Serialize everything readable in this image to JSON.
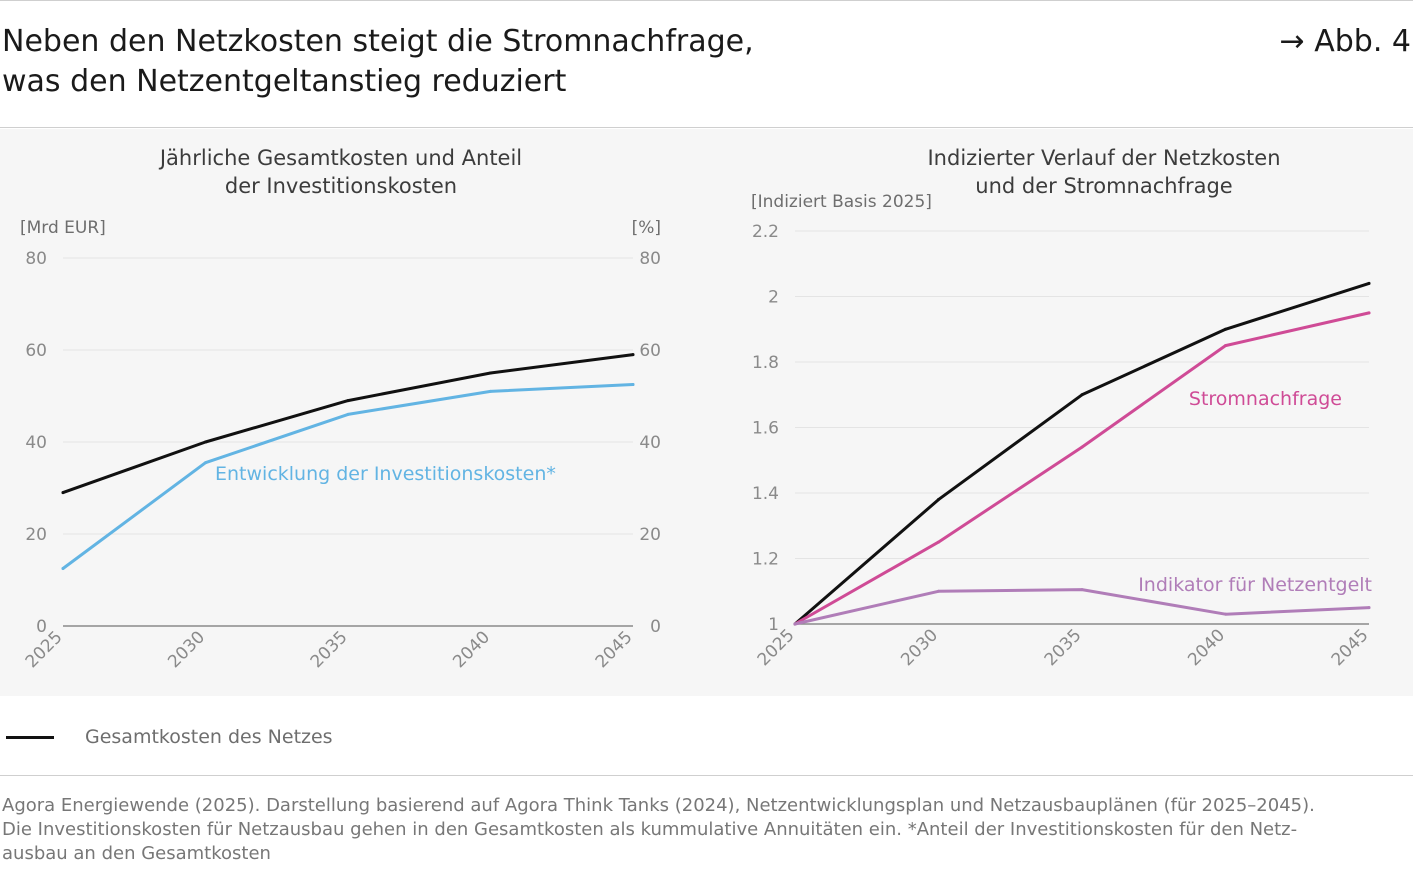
{
  "header": {
    "title_line1": "Neben den Netzkosten steigt die Stromnachfrage,",
    "title_line2": "was den Netzentgeltanstieg reduziert",
    "figure_ref": "→ Abb. 4"
  },
  "legend": {
    "label": "Gesamtkosten des Netzes",
    "color": "#111111"
  },
  "source": {
    "line1": "Agora Energiewende (2025). Darstellung basierend auf Agora Think Tanks (2024), Netzentwicklungsplan und Netzausbauplänen (für 2025–2045).",
    "line2": "Die Investitionskosten für Netzausbau gehen in den Gesamtkosten als kummulative Annuitäten ein. *Anteil der Investitionskosten für den Netz-",
    "line3": "ausbau an den Gesamtkosten"
  },
  "colors": {
    "background_panel": "#f6f6f6",
    "total_cost": "#111111",
    "investment": "#62b4e3",
    "demand": "#cf4b96",
    "indicator": "#b07db8",
    "gridline": "#e4e4e4",
    "baseline": "#8a8a8a"
  },
  "chart_data": [
    {
      "type": "line",
      "title_line1": "Jährliche Gesamtkosten und Anteil",
      "title_line2": "der Investitionskosten",
      "y_left_label": "[Mrd EUR]",
      "y_right_label": "[%]",
      "x": [
        "2025",
        "2030",
        "2035",
        "2040",
        "2045"
      ],
      "ylim": [
        0,
        80
      ],
      "y_ticks": [
        "0",
        "20",
        "40",
        "60",
        "80"
      ],
      "y_right_ticks": [
        "0",
        "20",
        "40",
        "60",
        "80"
      ],
      "grid": true,
      "series": [
        {
          "name": "Gesamtkosten des Netzes",
          "axis": "left",
          "color": "#111111",
          "values": [
            29,
            40,
            49,
            55,
            59
          ]
        },
        {
          "name": "Entwicklung der Investitionskosten*",
          "axis": "right",
          "color": "#62b4e3",
          "values": [
            12.5,
            35.5,
            46,
            51,
            52.5
          ]
        }
      ]
    },
    {
      "type": "line",
      "title_line1": "Indizierter Verlauf der Netzkosten",
      "title_line2": "und der Stromnachfrage",
      "y_label": "[Indiziert Basis 2025]",
      "x": [
        "2025",
        "2030",
        "2035",
        "2040",
        "2045"
      ],
      "ylim": [
        1,
        2.2
      ],
      "y_ticks": [
        "1",
        "1.2",
        "1.4",
        "1.6",
        "1.8",
        "2",
        "2.2"
      ],
      "grid": true,
      "series": [
        {
          "name": "Gesamtkosten des Netzes",
          "color": "#111111",
          "values": [
            1,
            1.38,
            1.7,
            1.9,
            2.04
          ]
        },
        {
          "name": "Stromnachfrage",
          "color": "#cf4b96",
          "values": [
            1,
            1.25,
            1.54,
            1.85,
            1.95
          ]
        },
        {
          "name": "Indikator für Netzentgelt",
          "color": "#b07db8",
          "values": [
            1,
            1.1,
            1.105,
            1.03,
            1.05
          ]
        }
      ]
    }
  ]
}
